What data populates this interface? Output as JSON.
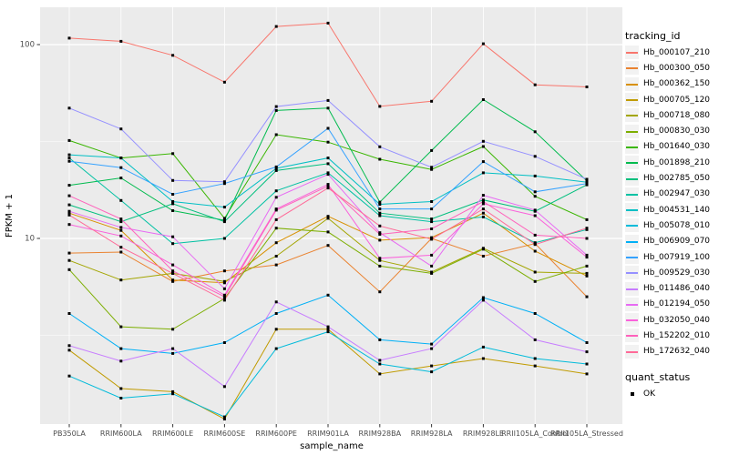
{
  "chart_data": {
    "type": "line",
    "title": "",
    "xlabel": "sample_name",
    "ylabel": "FPKM + 1",
    "y_scale": "log10",
    "ylim": [
      1.1,
      155
    ],
    "grid": true,
    "legend_position": "right",
    "point_marker": "square",
    "point_color": "#000000",
    "y_ticks": [
      {
        "label": "100",
        "value": 100
      },
      {
        "label": "10",
        "value": 10
      }
    ],
    "y_minor": [
      31.623,
      3.1623
    ],
    "categories": [
      "PB350LA",
      "RRIM600LA",
      "RRIM600LE",
      "RRIM600SE",
      "RRIM600PE",
      "RRIM901LA",
      "RRIM928BA",
      "RRIM928LA",
      "RRIM928LE",
      "RRII105LA_Control",
      "RRII105LA_Stressed"
    ],
    "legend": {
      "color_title": "tracking_id",
      "shape_title": "quant_status",
      "shape_items": [
        {
          "label": "OK",
          "marker": "black-square"
        }
      ]
    },
    "series": [
      {
        "name": "Hb_000107_210",
        "color": "#F8766D",
        "values": [
          108,
          104,
          88,
          64,
          124,
          129,
          48,
          51,
          101,
          62,
          60.5
        ]
      },
      {
        "name": "Hb_000300_050",
        "color": "#EA8331",
        "values": [
          8.4,
          8.5,
          6.0,
          6.8,
          7.3,
          9.2,
          5.3,
          10.0,
          8.1,
          9.4,
          5.0
        ]
      },
      {
        "name": "Hb_000362_150",
        "color": "#D89000",
        "values": [
          13.5,
          11.0,
          6.1,
          5.9,
          9.5,
          13.0,
          9.8,
          10.1,
          13.5,
          8.6,
          6.4
        ]
      },
      {
        "name": "Hb_000705_120",
        "color": "#C09B00",
        "values": [
          2.65,
          1.68,
          1.62,
          1.17,
          3.4,
          3.4,
          2.0,
          2.2,
          2.4,
          2.2,
          2.0
        ]
      },
      {
        "name": "Hb_000718_080",
        "color": "#A3A500",
        "values": [
          7.7,
          6.1,
          6.6,
          6.0,
          8.1,
          12.7,
          7.7,
          6.7,
          8.9,
          6.7,
          6.6
        ]
      },
      {
        "name": "Hb_000830_030",
        "color": "#7CAE00",
        "values": [
          6.9,
          3.5,
          3.4,
          4.9,
          11.3,
          10.8,
          7.2,
          6.6,
          8.8,
          6.0,
          7.2
        ]
      },
      {
        "name": "Hb_001640_030",
        "color": "#39B600",
        "values": [
          32,
          26,
          27.4,
          12.7,
          34.3,
          31.4,
          25.6,
          22.7,
          29.8,
          16.5,
          12.5
        ]
      },
      {
        "name": "Hb_001898_210",
        "color": "#00BB4E",
        "values": [
          18.8,
          20.5,
          13.9,
          12.4,
          45.7,
          47,
          15.4,
          28.4,
          52,
          35.5,
          19.8
        ]
      },
      {
        "name": "Hb_002785_050",
        "color": "#00BF7D",
        "values": [
          14.9,
          12.2,
          15.1,
          12.2,
          22.4,
          24.3,
          13.5,
          12.6,
          15.8,
          13.8,
          18.9
        ]
      },
      {
        "name": "Hb_002947_030",
        "color": "#00C1A3",
        "values": [
          26,
          15.7,
          9.4,
          10.0,
          17.6,
          21.8,
          13.1,
          12.2,
          12.9,
          9.5,
          11.1
        ]
      },
      {
        "name": "Hb_004531_140",
        "color": "#00BFC4",
        "values": [
          27,
          26,
          15.5,
          14.5,
          23.0,
          26,
          15.0,
          15.5,
          21.8,
          21,
          19.5
        ]
      },
      {
        "name": "Hb_005078_010",
        "color": "#00BBDA",
        "values": [
          1.95,
          1.5,
          1.58,
          1.2,
          2.7,
          3.3,
          2.25,
          2.05,
          2.75,
          2.4,
          2.25
        ]
      },
      {
        "name": "Hb_006909_070",
        "color": "#00B0F6",
        "values": [
          4.1,
          2.7,
          2.55,
          2.9,
          4.1,
          5.1,
          3.0,
          2.85,
          4.95,
          4.1,
          2.9
        ]
      },
      {
        "name": "Hb_007919_100",
        "color": "#35A2FF",
        "values": [
          25,
          23.2,
          16.9,
          19.2,
          23.4,
          37,
          14.2,
          14.2,
          24.9,
          17.4,
          19.2
        ]
      },
      {
        "name": "Hb_009529_030",
        "color": "#9590FF",
        "values": [
          47,
          36.7,
          19.9,
          19.6,
          47.9,
          51.5,
          29.7,
          23.3,
          31.7,
          26.5,
          20.2
        ]
      },
      {
        "name": "Hb_011486_040",
        "color": "#C77CFF",
        "values": [
          2.8,
          2.33,
          2.7,
          1.72,
          4.7,
          3.5,
          2.35,
          2.7,
          4.8,
          3.0,
          2.6
        ]
      },
      {
        "name": "Hb_012194_050",
        "color": "#E76BF3",
        "values": [
          13.8,
          11.4,
          10.2,
          5.5,
          16.3,
          21.4,
          10.7,
          7.2,
          16.7,
          14.0,
          8.2
        ]
      },
      {
        "name": "Hb_032050_040",
        "color": "#FA62DB",
        "values": [
          11.8,
          10.3,
          7.3,
          5.1,
          14.2,
          19.0,
          7.9,
          8.2,
          15.1,
          13.1,
          8.0
        ]
      },
      {
        "name": "Hb_152202_010",
        "color": "#FF62BC",
        "values": [
          16.6,
          12.6,
          6.8,
          5.0,
          14.0,
          18.6,
          10.5,
          11.2,
          15.5,
          10.4,
          10.0
        ]
      },
      {
        "name": "Hb_172632_040",
        "color": "#FF6A98",
        "values": [
          13.2,
          9.0,
          6.6,
          4.8,
          12.5,
          18.2,
          11.6,
          9.9,
          14.2,
          9.3,
          11.3
        ]
      }
    ],
    "colors": {
      "panel_bg": "#EBEBEB",
      "grid": "#FFFFFF",
      "axis_text": "#4D4D4D",
      "tick": "#333333",
      "legend_key_bg": "#F2F2F2"
    }
  }
}
